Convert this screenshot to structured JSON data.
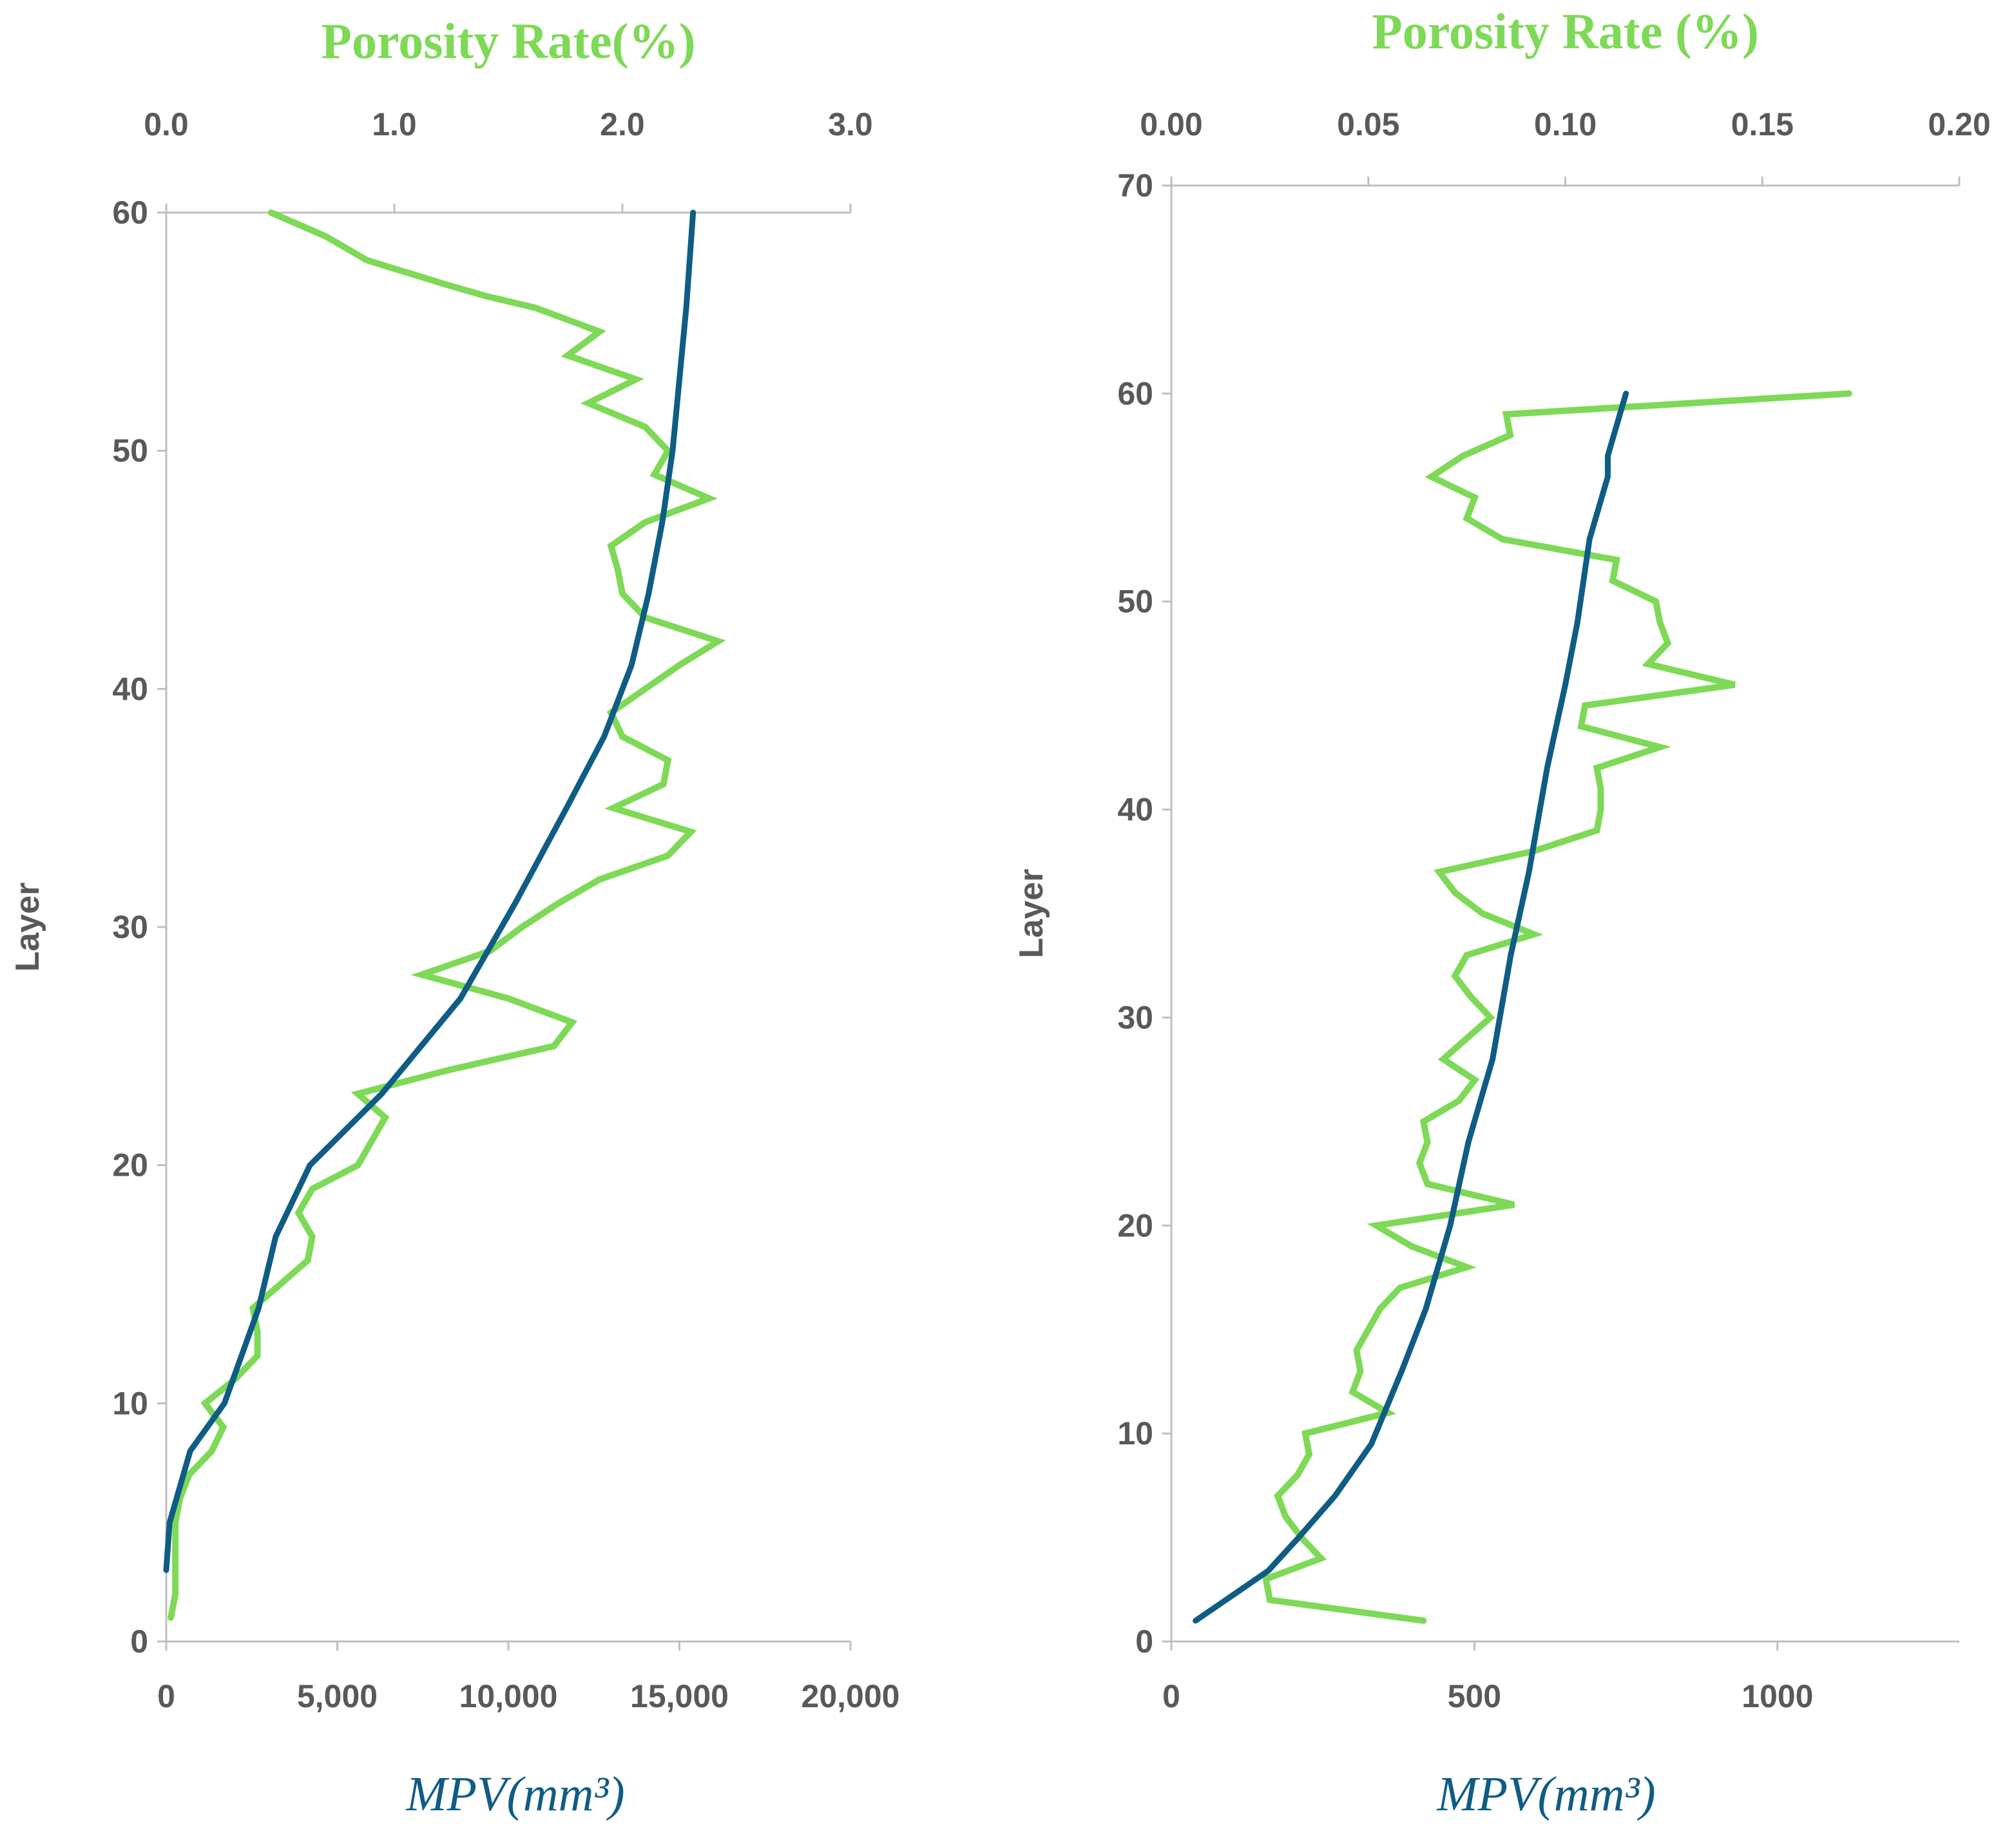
{
  "colors": {
    "porosity": "#7ed957",
    "mpv": "#0f5c85",
    "axis": "#bfbfbf",
    "text": "#595959"
  },
  "chart_data": [
    {
      "type": "line",
      "top_title": "Porosity Rate(%)",
      "bottom_title": "MPV(mm³)",
      "ylabel": "Layer",
      "ylim": [
        0,
        60
      ],
      "yticks": [
        "0",
        "10",
        "20",
        "30",
        "40",
        "50",
        "60"
      ],
      "porosity_xlim": [
        0,
        3
      ],
      "porosity_ticks": [
        "0.0",
        "1.0",
        "2.0",
        "3.0"
      ],
      "mpv_xlim": [
        0,
        20000
      ],
      "mpv_ticks": [
        "0",
        "5,000",
        "10,000",
        "15,000",
        "20,000"
      ],
      "series": [
        {
          "name": "Porosity Rate",
          "axis": "top",
          "points": [
            [
              0.02,
              1
            ],
            [
              0.04,
              2
            ],
            [
              0.04,
              3
            ],
            [
              0.04,
              4
            ],
            [
              0.04,
              5
            ],
            [
              0.06,
              6
            ],
            [
              0.1,
              7
            ],
            [
              0.2,
              8
            ],
            [
              0.25,
              9
            ],
            [
              0.17,
              10
            ],
            [
              0.3,
              11
            ],
            [
              0.4,
              12
            ],
            [
              0.4,
              13
            ],
            [
              0.38,
              14
            ],
            [
              0.5,
              15
            ],
            [
              0.62,
              16
            ],
            [
              0.64,
              17
            ],
            [
              0.58,
              18
            ],
            [
              0.64,
              19
            ],
            [
              0.84,
              20
            ],
            [
              0.9,
              21
            ],
            [
              0.96,
              22
            ],
            [
              0.84,
              23
            ],
            [
              1.24,
              24
            ],
            [
              1.7,
              25
            ],
            [
              1.78,
              26
            ],
            [
              1.5,
              27
            ],
            [
              1.12,
              28
            ],
            [
              1.42,
              29
            ],
            [
              1.56,
              30
            ],
            [
              1.72,
              31
            ],
            [
              1.9,
              32
            ],
            [
              2.2,
              33
            ],
            [
              2.3,
              34
            ],
            [
              1.96,
              35
            ],
            [
              2.18,
              36
            ],
            [
              2.2,
              37
            ],
            [
              2.0,
              38
            ],
            [
              1.95,
              39
            ],
            [
              2.1,
              40
            ],
            [
              2.25,
              41
            ],
            [
              2.42,
              42
            ],
            [
              2.1,
              43
            ],
            [
              2.0,
              44
            ],
            [
              1.98,
              45
            ],
            [
              1.95,
              46
            ],
            [
              2.1,
              47
            ],
            [
              2.38,
              48
            ],
            [
              2.14,
              49
            ],
            [
              2.2,
              50
            ],
            [
              2.1,
              51
            ],
            [
              1.85,
              52
            ],
            [
              2.06,
              53
            ],
            [
              1.76,
              54
            ],
            [
              1.9,
              55
            ],
            [
              1.62,
              56
            ],
            [
              1.4,
              56.5
            ],
            [
              1.22,
              57
            ],
            [
              0.88,
              58
            ],
            [
              0.7,
              59
            ],
            [
              0.46,
              60
            ]
          ]
        },
        {
          "name": "MPV",
          "axis": "bottom",
          "points": [
            [
              0,
              3
            ],
            [
              100,
              5
            ],
            [
              700,
              8
            ],
            [
              1700,
              10
            ],
            [
              2700,
              14
            ],
            [
              3200,
              17
            ],
            [
              4200,
              20
            ],
            [
              6300,
              23
            ],
            [
              8600,
              27
            ],
            [
              10200,
              31
            ],
            [
              11700,
              35
            ],
            [
              12800,
              38
            ],
            [
              13600,
              41
            ],
            [
              14100,
              44
            ],
            [
              14500,
              47
            ],
            [
              14800,
              50
            ],
            [
              15000,
              53
            ],
            [
              15200,
              56
            ],
            [
              15400,
              60
            ]
          ]
        }
      ]
    },
    {
      "type": "line",
      "top_title": "Porosity Rate (%)",
      "bottom_title": "MPV(mm³)",
      "ylabel": "Layer",
      "ylim": [
        0,
        70
      ],
      "yticks": [
        "0",
        "10",
        "20",
        "30",
        "40",
        "50",
        "60",
        "70"
      ],
      "porosity_xlim": [
        0,
        0.2
      ],
      "porosity_ticks": [
        "0.00",
        "0.05",
        "0.10",
        "0.15",
        "0.20"
      ],
      "mpv_xlim": [
        0,
        1300
      ],
      "mpv_ticks": [
        "0",
        "500",
        "1000"
      ],
      "series": [
        {
          "name": "Porosity Rate",
          "axis": "top",
          "points": [
            [
              0.064,
              1
            ],
            [
              0.025,
              2
            ],
            [
              0.024,
              3
            ],
            [
              0.038,
              4
            ],
            [
              0.033,
              5
            ],
            [
              0.029,
              6
            ],
            [
              0.027,
              7
            ],
            [
              0.032,
              8
            ],
            [
              0.035,
              9
            ],
            [
              0.034,
              10
            ],
            [
              0.055,
              11
            ],
            [
              0.046,
              12
            ],
            [
              0.048,
              13
            ],
            [
              0.047,
              14
            ],
            [
              0.05,
              15
            ],
            [
              0.053,
              16
            ],
            [
              0.058,
              17
            ],
            [
              0.075,
              18
            ],
            [
              0.061,
              19
            ],
            [
              0.052,
              20
            ],
            [
              0.087,
              21
            ],
            [
              0.065,
              22
            ],
            [
              0.063,
              23
            ],
            [
              0.065,
              24
            ],
            [
              0.064,
              25
            ],
            [
              0.073,
              26
            ],
            [
              0.077,
              27
            ],
            [
              0.069,
              28
            ],
            [
              0.075,
              29
            ],
            [
              0.081,
              30
            ],
            [
              0.076,
              31
            ],
            [
              0.072,
              32
            ],
            [
              0.075,
              33
            ],
            [
              0.092,
              34
            ],
            [
              0.079,
              35
            ],
            [
              0.072,
              36
            ],
            [
              0.068,
              37
            ],
            [
              0.092,
              38
            ],
            [
              0.108,
              39
            ],
            [
              0.109,
              40
            ],
            [
              0.109,
              41
            ],
            [
              0.108,
              42
            ],
            [
              0.124,
              43
            ],
            [
              0.104,
              44
            ],
            [
              0.105,
              45
            ],
            [
              0.143,
              46
            ],
            [
              0.121,
              47
            ],
            [
              0.126,
              48
            ],
            [
              0.124,
              49
            ],
            [
              0.123,
              50
            ],
            [
              0.112,
              51
            ],
            [
              0.113,
              52
            ],
            [
              0.084,
              53
            ],
            [
              0.075,
              54
            ],
            [
              0.077,
              55
            ],
            [
              0.066,
              56
            ],
            [
              0.074,
              57
            ],
            [
              0.086,
              58
            ],
            [
              0.085,
              59
            ],
            [
              0.172,
              60
            ]
          ]
        },
        {
          "name": "MPV",
          "axis": "bottom",
          "points": [
            [
              40,
              1
            ],
            [
              100,
              2.2
            ],
            [
              160,
              3.4
            ],
            [
              210,
              5
            ],
            [
              270,
              7
            ],
            [
              330,
              9.5
            ],
            [
              380,
              13
            ],
            [
              420,
              16
            ],
            [
              460,
              20
            ],
            [
              490,
              24
            ],
            [
              530,
              28
            ],
            [
              560,
              33
            ],
            [
              590,
              37
            ],
            [
              620,
              42
            ],
            [
              650,
              46
            ],
            [
              670,
              49
            ],
            [
              690,
              53
            ],
            [
              720,
              56
            ],
            [
              720,
              57
            ],
            [
              730,
              58
            ],
            [
              750,
              60
            ]
          ]
        }
      ]
    }
  ]
}
